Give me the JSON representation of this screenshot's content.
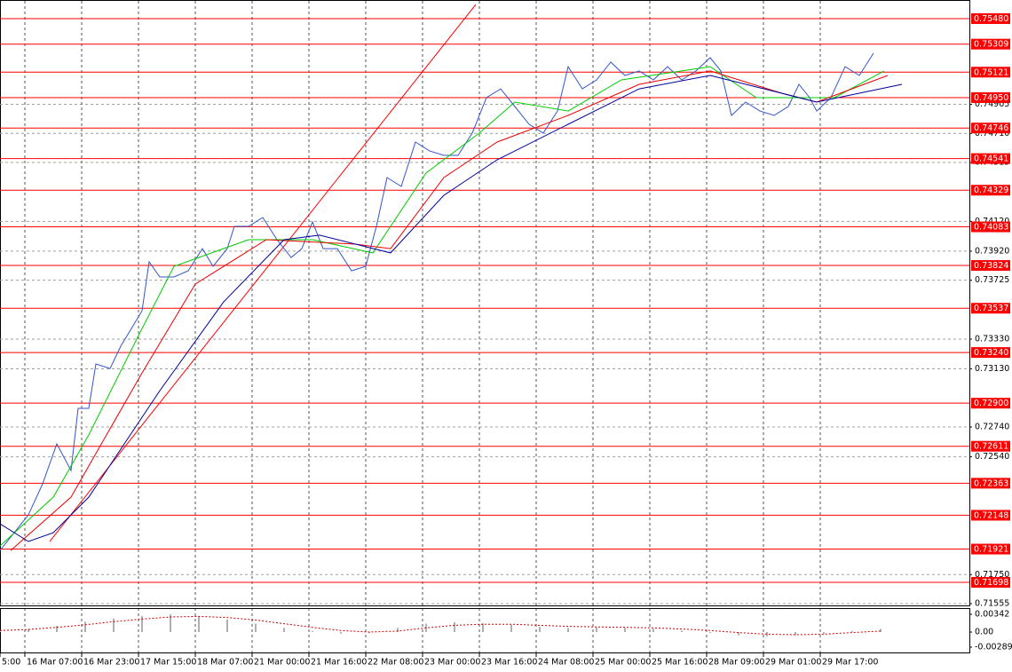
{
  "chart_data": [
    {
      "type": "line",
      "xlim": [
        0,
        273
      ],
      "ylim": [
        0.71555,
        0.75605
      ],
      "grid": true,
      "xticks": [
        {
          "value": 0,
          "label": "5:00"
        },
        {
          "value": 7,
          "label": "16 Mar 07:00"
        },
        {
          "value": 23,
          "label": "16 Mar 23:00"
        },
        {
          "value": 39,
          "label": "17 Mar 15:00"
        },
        {
          "value": 55,
          "label": "18 Mar 07:00"
        },
        {
          "value": 71,
          "label": "21 Mar 00:00"
        },
        {
          "value": 87,
          "label": "21 Mar 16:00"
        },
        {
          "value": 103,
          "label": "22 Mar 08:00"
        },
        {
          "value": 119,
          "label": "23 Mar 00:00"
        },
        {
          "value": 135,
          "label": "23 Mar 16:00"
        },
        {
          "value": 151,
          "label": "24 Mar 08:00"
        },
        {
          "value": 167,
          "label": "25 Mar 00:00"
        },
        {
          "value": 183,
          "label": "25 Mar 16:00"
        },
        {
          "value": 199,
          "label": "28 Mar 09:00"
        },
        {
          "value": 215,
          "label": "29 Mar 01:00"
        },
        {
          "value": 231,
          "label": "29 Mar 17:00"
        }
      ],
      "yticks": [
        0.74905,
        {
          "value": 0.7471,
          "label": "0.74710"
        },
        0.74515,
        {
          "value": 0.7412,
          "label": "0.74120"
        },
        {
          "value": 0.7392,
          "label": "0.73920"
        },
        0.73725,
        {
          "value": 0.7333,
          "label": "0.73330"
        },
        {
          "value": 0.7313,
          "label": "0.73130"
        },
        {
          "value": 0.7274,
          "label": "0.72740"
        },
        {
          "value": 0.7254,
          "label": "0.72540"
        },
        {
          "value": 0.7175,
          "label": "0.71750"
        },
        0.71555
      ],
      "levels": [
        {
          "value": 0.7548,
          "label": "0.75480"
        },
        0.75309,
        0.75121,
        {
          "value": 0.7495,
          "label": "0.74950"
        },
        0.74746,
        0.74541,
        0.74329,
        0.74083,
        0.73824,
        0.73537,
        {
          "value": 0.7324,
          "label": "0.73240"
        },
        {
          "value": 0.729,
          "label": "0.72900"
        },
        0.72611,
        0.72363,
        0.72148,
        0.71921,
        0.71698
      ],
      "level_color": "#ff0000",
      "trendline": {
        "color": "#ff0000",
        "x": [
          14,
          134
        ],
        "values": [
          0.71972,
          0.75575
        ]
      },
      "series": [
        {
          "color": "#3355cc",
          "x": [
            0,
            4,
            8,
            12,
            16,
            20,
            22,
            25,
            27,
            31,
            34,
            37,
            40,
            42,
            45,
            49,
            53,
            57,
            60,
            64,
            66,
            70,
            74,
            78,
            82,
            85,
            88,
            91,
            95,
            99,
            103,
            106,
            109,
            113,
            117,
            121,
            125,
            129,
            133,
            137,
            141,
            145,
            149,
            153,
            157,
            160,
            164,
            168,
            172,
            176,
            180,
            184,
            188,
            192,
            196,
            200,
            203,
            206,
            210,
            214,
            218,
            222,
            225,
            228,
            230,
            234,
            238,
            242,
            246
          ],
          "values": [
            0.71912,
            0.72031,
            0.72151,
            0.72359,
            0.72627,
            0.72448,
            0.72865,
            0.72865,
            0.73163,
            0.73133,
            0.73282,
            0.73401,
            0.7352,
            0.73848,
            0.73747,
            0.73747,
            0.73788,
            0.73937,
            0.73818,
            0.73937,
            0.74086,
            0.74086,
            0.74146,
            0.73997,
            0.73878,
            0.73937,
            0.74116,
            0.73937,
            0.73937,
            0.73788,
            0.73818,
            0.74086,
            0.74414,
            0.74354,
            0.74652,
            0.74592,
            0.74563,
            0.74563,
            0.74712,
            0.7495,
            0.75009,
            0.7489,
            0.74771,
            0.74712,
            0.7486,
            0.75158,
            0.75009,
            0.75069,
            0.75188,
            0.75099,
            0.75129,
            0.75069,
            0.75158,
            0.75069,
            0.75129,
            0.75218,
            0.75129,
            0.74831,
            0.7492,
            0.7486,
            0.74831,
            0.7489,
            0.75039,
            0.7495,
            0.7486,
            0.7495,
            0.75158,
            0.75099,
            0.75248
          ]
        },
        {
          "color": "#00cc00",
          "x": [
            0,
            15,
            25,
            40,
            49,
            70,
            88,
            105,
            120,
            135,
            145,
            160,
            175,
            200,
            213,
            235,
            249
          ],
          "values": [
            0.71942,
            0.7227,
            0.72687,
            0.73401,
            0.73818,
            0.73997,
            0.73997,
            0.73908,
            0.74444,
            0.74712,
            0.7492,
            0.7486,
            0.75069,
            0.75158,
            0.7495,
            0.7495,
            0.75129
          ]
        },
        {
          "color": "#ee0000",
          "x": [
            3,
            20,
            30,
            40,
            55,
            75,
            100,
            110,
            125,
            140,
            160,
            180,
            200,
            220,
            230,
            250
          ],
          "values": [
            0.71912,
            0.7227,
            0.72687,
            0.73103,
            0.73699,
            0.73997,
            0.73967,
            0.73937,
            0.74414,
            0.74652,
            0.74831,
            0.75039,
            0.75129,
            0.7498,
            0.7492,
            0.75099
          ]
        },
        {
          "color": "#000099",
          "x": [
            0,
            8,
            15,
            25,
            35,
            45,
            63,
            80,
            90,
            110,
            125,
            140,
            160,
            180,
            200,
            220,
            230,
            254
          ],
          "values": [
            0.72091,
            0.71972,
            0.72031,
            0.7227,
            0.72627,
            0.72984,
            0.7358,
            0.73997,
            0.74027,
            0.73908,
            0.74295,
            0.74533,
            0.74771,
            0.75009,
            0.75099,
            0.7498,
            0.7492,
            0.75039
          ]
        }
      ]
    },
    {
      "type": "bar",
      "ylim": [
        -0.00392,
        0.00444
      ],
      "yticks": [
        0.00342,
        {
          "value": 0,
          "label": "0.00"
        },
        -0.002894
      ],
      "series": [
        {
          "kind": "bar",
          "color": "#b0b0b0",
          "x": [
            0,
            8,
            16,
            24,
            32,
            40,
            48,
            56,
            64,
            72,
            80,
            88,
            96,
            104,
            112,
            120,
            128,
            136,
            144,
            152,
            160,
            168,
            176,
            184,
            192,
            200,
            208,
            216,
            224,
            232,
            240,
            248
          ],
          "values": [
            0.0002,
            0.0006,
            0.0012,
            0.002,
            0.0026,
            0.0031,
            0.0034,
            0.003,
            0.0024,
            0.0016,
            0.0008,
            0.0002,
            -0.0003,
            -0.0002,
            0.0008,
            0.0016,
            0.0019,
            0.0017,
            0.0014,
            0.001,
            0.0008,
            0.0009,
            0.0008,
            0.0006,
            0.0003,
            -0.0002,
            -0.0006,
            -0.0008,
            -0.0006,
            -0.0003,
            0.0002,
            0.0006
          ]
        },
        {
          "kind": "line",
          "dash": true,
          "color": "#cc0000",
          "x": [
            0,
            8,
            16,
            24,
            32,
            40,
            48,
            56,
            64,
            72,
            80,
            88,
            96,
            104,
            112,
            120,
            128,
            136,
            144,
            152,
            160,
            168,
            176,
            184,
            192,
            200,
            208,
            216,
            224,
            232,
            240,
            248
          ],
          "values": [
            0.0003,
            0.0005,
            0.0009,
            0.0014,
            0.002,
            0.0025,
            0.0029,
            0.003,
            0.0028,
            0.0023,
            0.0016,
            0.0009,
            0.0003,
            0,
            0.0002,
            0.0008,
            0.0013,
            0.0015,
            0.0015,
            0.0013,
            0.0011,
            0.001,
            0.0009,
            0.0008,
            0.0006,
            0.0003,
            -0.0001,
            -0.0004,
            -0.0005,
            -0.0004,
            -0.0001,
            0.0002
          ]
        }
      ]
    }
  ]
}
